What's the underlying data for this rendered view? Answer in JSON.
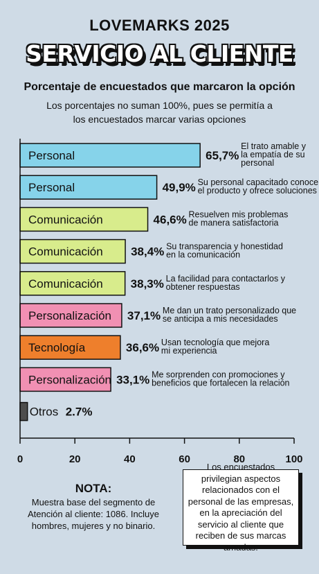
{
  "header": {
    "kicker": "LOVEMARKS 2025",
    "title": "SERVICIO AL CLIENTE",
    "subtitle": "Porcentaje de encuestados que marcaron la opción",
    "note": "Los porcentajes no suman 100%, pues se permitía a los encuestados marcar varias opciones"
  },
  "chart_data": {
    "type": "bar",
    "orientation": "horizontal",
    "xlim": [
      0,
      100
    ],
    "x_ticks": [
      "0",
      "20",
      "40",
      "60",
      "80",
      "100"
    ],
    "bars": [
      {
        "category": "Personal",
        "value": 65.7,
        "value_label": "65,7%",
        "description": [
          "El trato amable y",
          "la empatía de su",
          "personal"
        ],
        "color": "#86d3ea"
      },
      {
        "category": "Personal",
        "value": 49.9,
        "value_label": "49,9%",
        "description": [
          "Su personal capacitado conoce",
          "el producto y ofrece soluciones"
        ],
        "color": "#86d3ea"
      },
      {
        "category": "Comunicación",
        "value": 46.6,
        "value_label": "46,6%",
        "description": [
          "Resuelven mis problemas",
          "de manera satisfactoria"
        ],
        "color": "#d8ec8c"
      },
      {
        "category": "Comunicación",
        "value": 38.4,
        "value_label": "38,4%",
        "description": [
          "Su transparencia y honestidad",
          "en la comunicación"
        ],
        "color": "#d8ec8c"
      },
      {
        "category": "Comunicación",
        "value": 38.3,
        "value_label": "38,3%",
        "description": [
          "La facilidad para contactarlos y",
          "obtener respuestas"
        ],
        "color": "#d8ec8c"
      },
      {
        "category": "Personalización",
        "value": 37.1,
        "value_label": "37,1%",
        "description": [
          "Me dan un trato personalizado que",
          "se anticipa a mis necesidades"
        ],
        "color": "#f190b3"
      },
      {
        "category": "Tecnología",
        "value": 36.6,
        "value_label": "36,6%",
        "description": [
          "Usan tecnología que mejora",
          "mi experiencia"
        ],
        "color": "#ee7f2c"
      },
      {
        "category": "Personalización",
        "value": 33.1,
        "value_label": "33,1%",
        "description": [
          "Me sorprenden con promociones y",
          "beneficios que fortalecen la relación"
        ],
        "color": "#f190b3"
      },
      {
        "category": "Otros",
        "value": 2.7,
        "value_label": "2.7%",
        "description": [],
        "color": "#4d4d4d"
      }
    ]
  },
  "footer": {
    "nota_title": "NOTA:",
    "nota_text": "Muestra base del segmento de Atención al cliente: 1086. Incluye hombres, mujeres y no binario.",
    "callout": "Los encuestados privilegian aspectos relacionados con el personal de las empresas, en la apreciación del servicio al cliente que reciben de sus marcas amadas."
  }
}
